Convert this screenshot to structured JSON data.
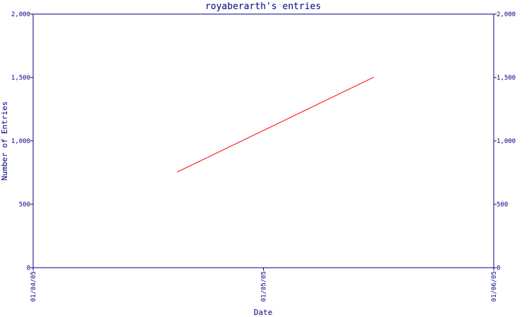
{
  "chart_data": {
    "type": "line",
    "title": "royaberarth's entries",
    "xlabel": "Date",
    "ylabel": "Number of Entries",
    "x_ticks": [
      "01/04/05",
      "01/05/05",
      "01/06/05"
    ],
    "x_tick_dates": [
      "2005-01-04",
      "2005-01-05",
      "2005-01-06"
    ],
    "xlim": [
      "2005-01-04",
      "2005-01-06"
    ],
    "y_ticks": [
      0,
      500,
      1000,
      1500,
      2000
    ],
    "y_tick_labels": [
      "0",
      "500",
      "1,000",
      "1,500",
      "2,000"
    ],
    "ylim": [
      0,
      2000
    ],
    "grid": false,
    "series": [
      {
        "color": "#ff0000",
        "points": [
          {
            "x": "2005-01-04T15:00",
            "y": 754
          },
          {
            "x": "2005-01-05T11:30",
            "y": 1502
          }
        ]
      }
    ]
  }
}
